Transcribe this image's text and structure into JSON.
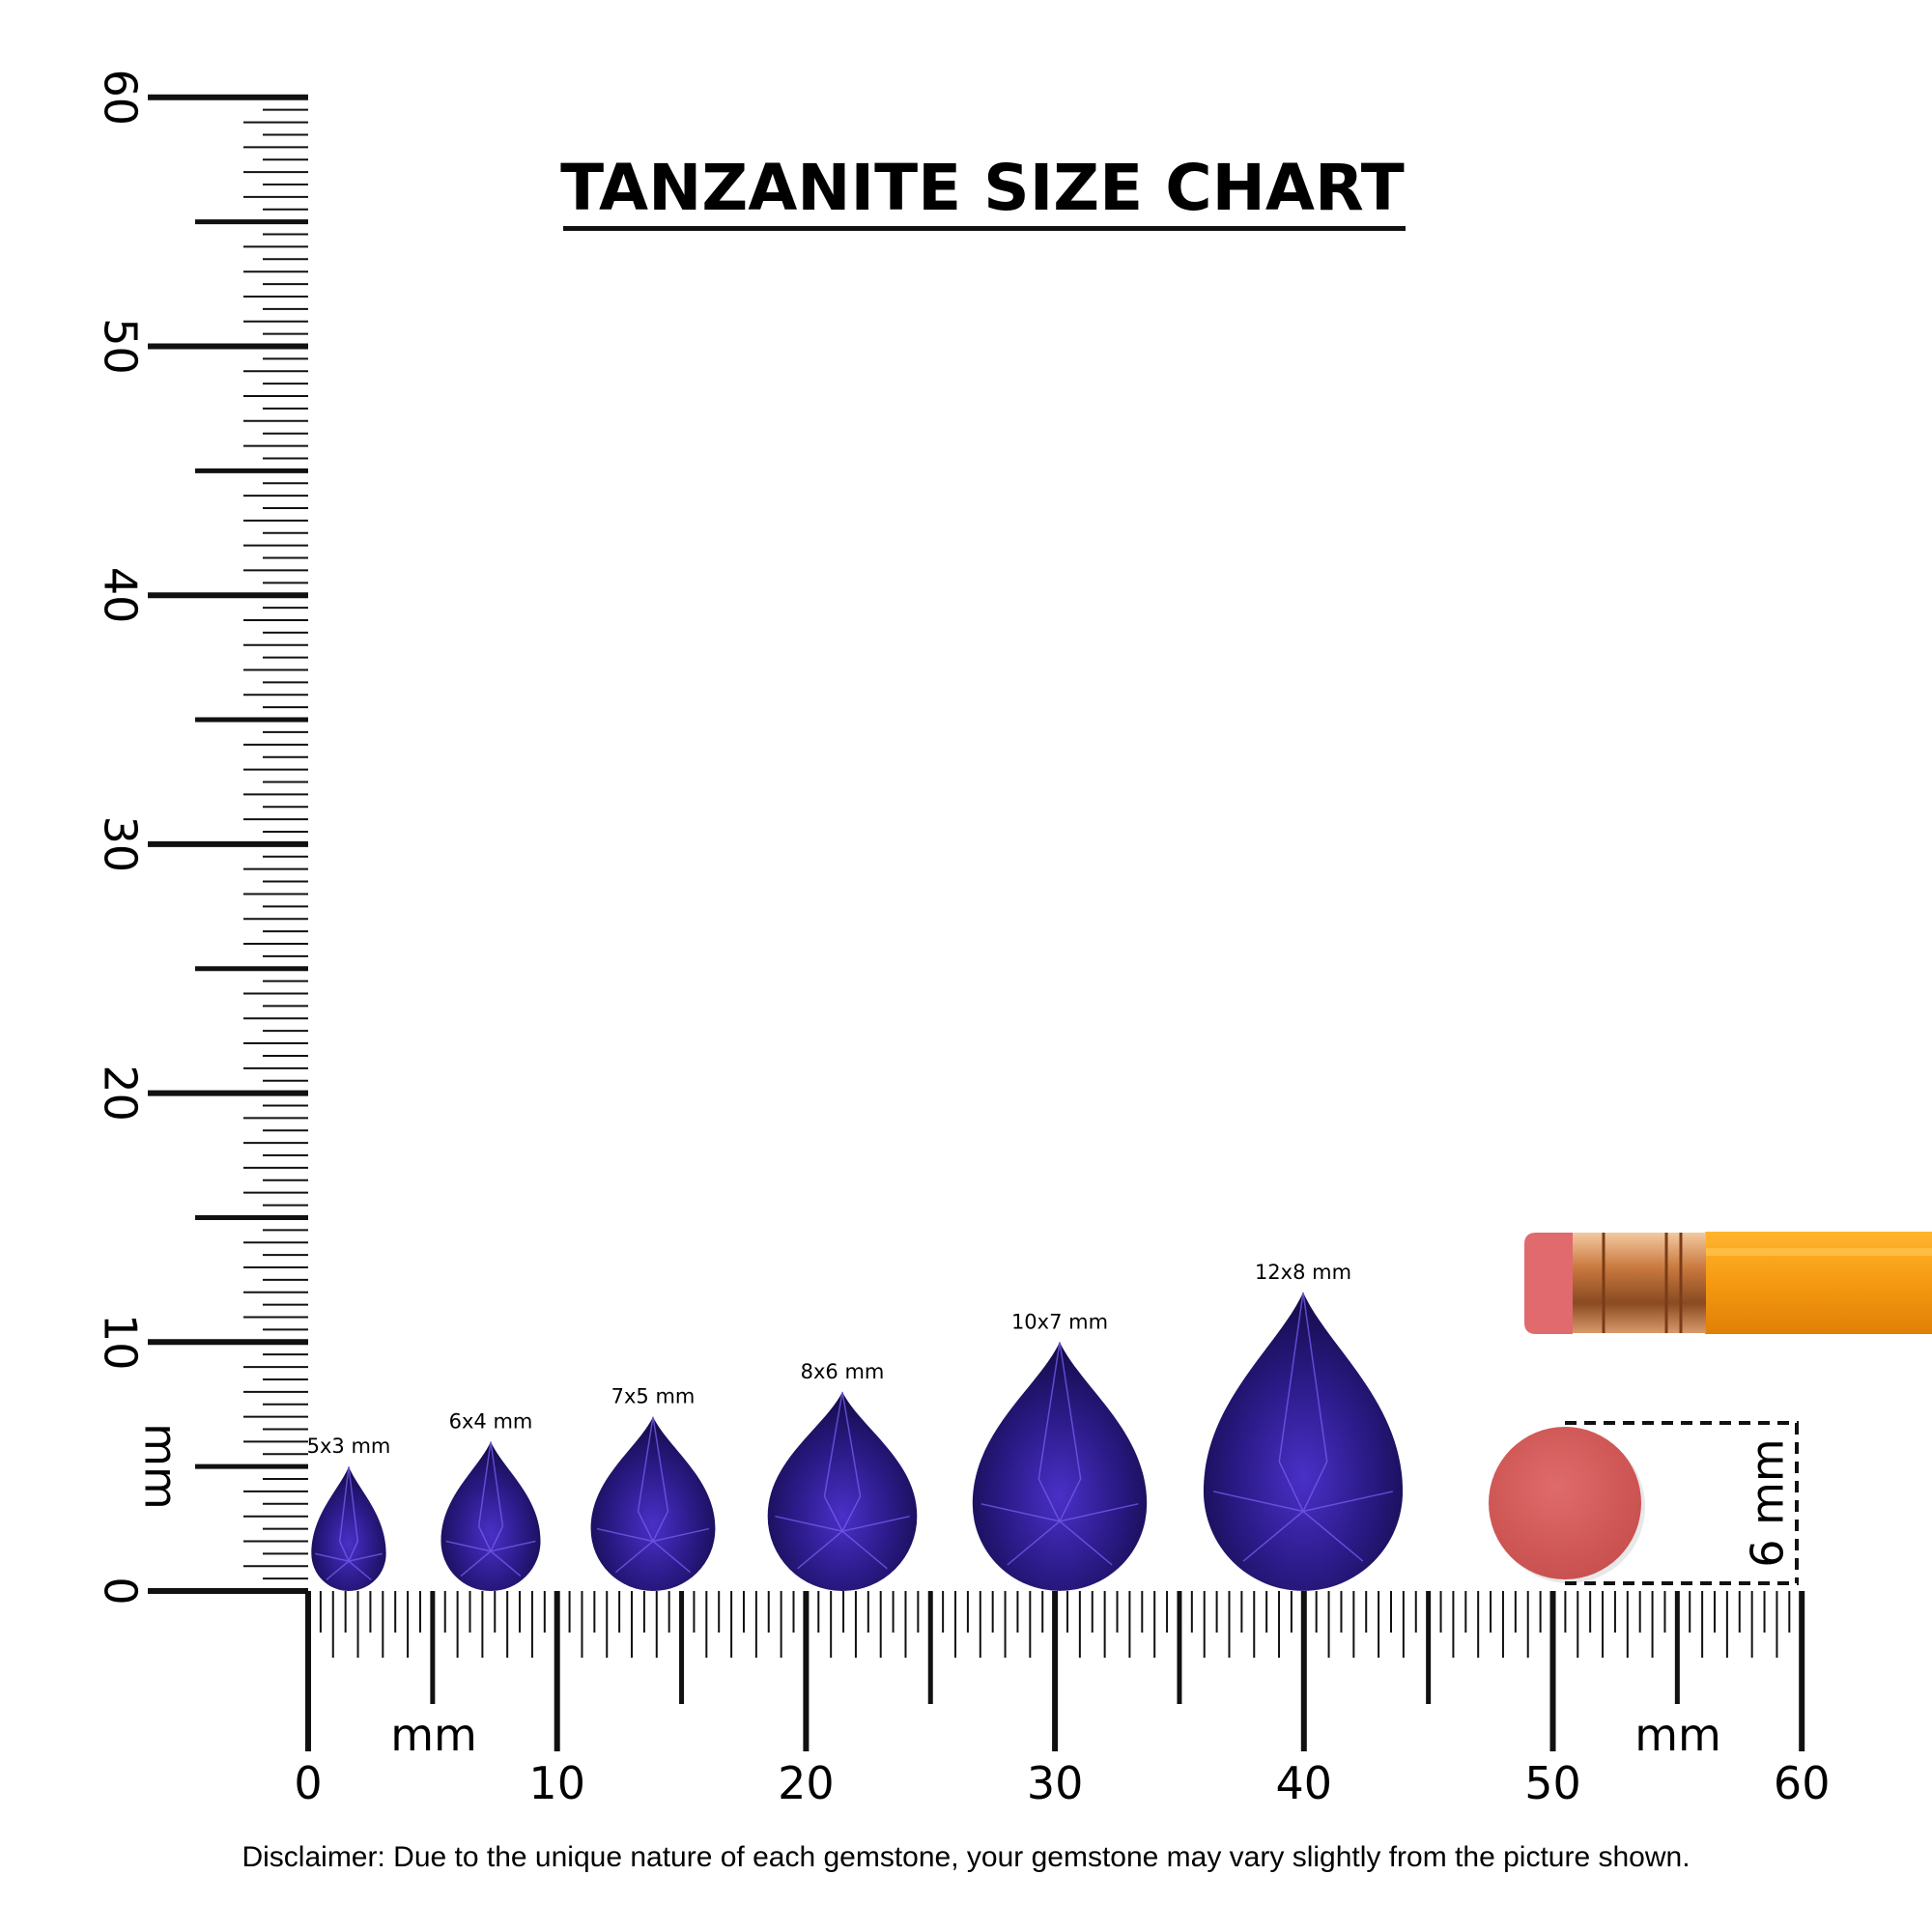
{
  "title": "TANZANITE SIZE CHART",
  "vertical_ruler": {
    "range": [
      0,
      60
    ],
    "ticks": [
      0,
      10,
      20,
      30,
      40,
      50,
      60
    ],
    "unit": "mm"
  },
  "horizontal_ruler": {
    "range": [
      0,
      60
    ],
    "ticks": [
      0,
      10,
      20,
      30,
      40,
      50,
      60
    ],
    "units": [
      "mm",
      "mm"
    ]
  },
  "gems": [
    {
      "label": "5x3 mm",
      "length": 5,
      "width": 3
    },
    {
      "label": "6x4 mm",
      "length": 6,
      "width": 4
    },
    {
      "label": "7x5 mm",
      "length": 7,
      "width": 5
    },
    {
      "label": "8x6 mm",
      "length": 8,
      "width": 6
    },
    {
      "label": "10x7 mm",
      "length": 10,
      "width": 7
    },
    {
      "label": "12x8 mm",
      "length": 12,
      "width": 8
    }
  ],
  "eraser": {
    "label": "6 mm"
  },
  "disclaimer": "Disclaimer: Due to the unique nature of each gemstone, your gemstone may vary slightly from the picture shown."
}
